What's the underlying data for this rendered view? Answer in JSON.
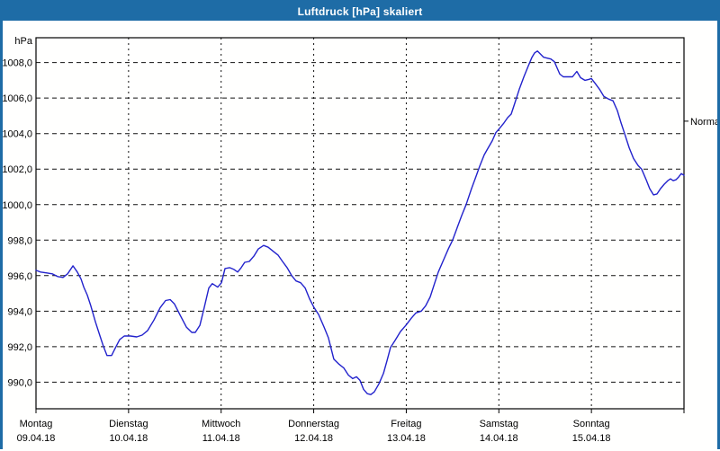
{
  "window": {
    "title": "Luftdruck [hPa] skaliert",
    "titlebar_color": "#1e6ca6",
    "border_color": "#1e6ca6",
    "background_color": "#fffffe"
  },
  "chart_data": {
    "type": "line",
    "title": "Luftdruck [hPa] skaliert",
    "ylabel": "hPa",
    "xlabel": "",
    "grid": "dashed horizontal and vertical (day boundaries)",
    "legend_position": "none",
    "line_color": "#2222cc",
    "ylim": [
      988.5,
      1009.4
    ],
    "x_range_hours": [
      0,
      168
    ],
    "y_ticks": [
      1008,
      1006,
      1004,
      1002,
      1000,
      998,
      996,
      994,
      992,
      990
    ],
    "y_tick_labels": [
      "1008,0",
      "1006,0",
      "1004,0",
      "1002,0",
      "1000,0",
      "998,0",
      "996,0",
      "994,0",
      "992,0",
      "990,0"
    ],
    "days": [
      {
        "weekday": "Montag",
        "date": "09.04.18"
      },
      {
        "weekday": "Dienstag",
        "date": "10.04.18"
      },
      {
        "weekday": "Mittwoch",
        "date": "11.04.18"
      },
      {
        "weekday": "Donnerstag",
        "date": "12.04.18"
      },
      {
        "weekday": "Freitag",
        "date": "13.04.18"
      },
      {
        "weekday": "Samstag",
        "date": "14.04.18"
      },
      {
        "weekday": "Sonntag",
        "date": "15.04.18"
      }
    ],
    "annotations": [
      {
        "label": "Normal",
        "value": 1004.7,
        "side": "right"
      }
    ],
    "series": [
      {
        "name": "Luftdruck",
        "color": "#2222cc",
        "points": [
          [
            0,
            996.3
          ],
          [
            1.2,
            996.2
          ],
          [
            2.8,
            996.15
          ],
          [
            4.2,
            996.1
          ],
          [
            5.6,
            995.95
          ],
          [
            7,
            995.9
          ],
          [
            8.2,
            996.1
          ],
          [
            9.6,
            996.55
          ],
          [
            10.7,
            996.2
          ],
          [
            11.7,
            995.8
          ],
          [
            12.4,
            995.35
          ],
          [
            13.3,
            994.9
          ],
          [
            14.2,
            994.3
          ],
          [
            15.4,
            993.4
          ],
          [
            16.6,
            992.6
          ],
          [
            17.5,
            992.0
          ],
          [
            18.4,
            991.5
          ],
          [
            19.6,
            991.5
          ],
          [
            20.5,
            991.9
          ],
          [
            21.7,
            992.4
          ],
          [
            22.9,
            992.6
          ],
          [
            24.5,
            992.6
          ],
          [
            26.1,
            992.55
          ],
          [
            27.5,
            992.65
          ],
          [
            28.9,
            992.9
          ],
          [
            30.6,
            993.5
          ],
          [
            32.2,
            994.2
          ],
          [
            33.6,
            994.6
          ],
          [
            34.8,
            994.65
          ],
          [
            35.9,
            994.4
          ],
          [
            37.3,
            993.8
          ],
          [
            39,
            993.1
          ],
          [
            40.4,
            992.8
          ],
          [
            41.3,
            992.8
          ],
          [
            42.5,
            993.2
          ],
          [
            43.6,
            994.2
          ],
          [
            44.8,
            995.3
          ],
          [
            45.7,
            995.55
          ],
          [
            47.1,
            995.35
          ],
          [
            48.1,
            995.6
          ],
          [
            49,
            996.4
          ],
          [
            50.2,
            996.45
          ],
          [
            51.3,
            996.35
          ],
          [
            52.3,
            996.2
          ],
          [
            53.2,
            996.45
          ],
          [
            54.1,
            996.75
          ],
          [
            55.3,
            996.8
          ],
          [
            56.5,
            997.1
          ],
          [
            57.6,
            997.5
          ],
          [
            59,
            997.7
          ],
          [
            60.2,
            997.6
          ],
          [
            61.6,
            997.35
          ],
          [
            62.8,
            997.15
          ],
          [
            63.9,
            996.8
          ],
          [
            65.1,
            996.45
          ],
          [
            66.3,
            996.0
          ],
          [
            67.4,
            995.7
          ],
          [
            68.6,
            995.6
          ],
          [
            69.8,
            995.3
          ],
          [
            70.9,
            994.7
          ],
          [
            72.1,
            994.2
          ],
          [
            73.3,
            993.8
          ],
          [
            74.7,
            993.1
          ],
          [
            75.8,
            992.5
          ],
          [
            77.2,
            991.3
          ],
          [
            78.6,
            991.0
          ],
          [
            79.8,
            990.8
          ],
          [
            81,
            990.4
          ],
          [
            82.1,
            990.2
          ],
          [
            83.1,
            990.3
          ],
          [
            84,
            990.1
          ],
          [
            84.9,
            989.6
          ],
          [
            85.9,
            989.35
          ],
          [
            86.8,
            989.3
          ],
          [
            87.7,
            989.45
          ],
          [
            88.9,
            989.9
          ],
          [
            90.1,
            990.5
          ],
          [
            91,
            991.2
          ],
          [
            91.9,
            991.95
          ],
          [
            93.1,
            992.35
          ],
          [
            94.5,
            992.85
          ],
          [
            95.9,
            993.2
          ],
          [
            97.3,
            993.6
          ],
          [
            98.5,
            993.9
          ],
          [
            99.9,
            994.0
          ],
          [
            101,
            994.3
          ],
          [
            102.2,
            994.8
          ],
          [
            103.4,
            995.6
          ],
          [
            104.3,
            996.2
          ],
          [
            105.5,
            996.8
          ],
          [
            106.9,
            997.5
          ],
          [
            108,
            998.0
          ],
          [
            109.2,
            998.7
          ],
          [
            110.4,
            999.4
          ],
          [
            111.5,
            1000.0
          ],
          [
            112.9,
            1000.9
          ],
          [
            114.1,
            1001.6
          ],
          [
            115,
            1002.15
          ],
          [
            116.2,
            1002.8
          ],
          [
            117.1,
            1003.15
          ],
          [
            118.3,
            1003.6
          ],
          [
            119.2,
            1004.05
          ],
          [
            120.2,
            1004.3
          ],
          [
            121.3,
            1004.6
          ],
          [
            122.3,
            1004.9
          ],
          [
            123.2,
            1005.1
          ],
          [
            124.1,
            1005.7
          ],
          [
            125.3,
            1006.5
          ],
          [
            126.5,
            1007.2
          ],
          [
            127.6,
            1007.8
          ],
          [
            128.6,
            1008.3
          ],
          [
            129.3,
            1008.55
          ],
          [
            130,
            1008.65
          ],
          [
            130.7,
            1008.5
          ],
          [
            131.6,
            1008.3
          ],
          [
            132.5,
            1008.25
          ],
          [
            133.5,
            1008.2
          ],
          [
            134.4,
            1008.05
          ],
          [
            135.1,
            1007.7
          ],
          [
            135.8,
            1007.35
          ],
          [
            136.7,
            1007.2
          ],
          [
            137.9,
            1007.2
          ],
          [
            139.1,
            1007.2
          ],
          [
            140.2,
            1007.5
          ],
          [
            141.2,
            1007.15
          ],
          [
            142.3,
            1007.0
          ],
          [
            143.3,
            1007.05
          ],
          [
            144,
            1007.1
          ],
          [
            144.9,
            1006.85
          ],
          [
            146.1,
            1006.5
          ],
          [
            147.2,
            1006.1
          ],
          [
            148.4,
            1005.95
          ],
          [
            149.6,
            1005.85
          ],
          [
            150.7,
            1005.3
          ],
          [
            151.7,
            1004.6
          ],
          [
            152.6,
            1004.0
          ],
          [
            153.8,
            1003.2
          ],
          [
            154.9,
            1002.6
          ],
          [
            156.1,
            1002.2
          ],
          [
            157,
            1002.0
          ],
          [
            158.2,
            1001.4
          ],
          [
            159.1,
            1000.9
          ],
          [
            160.1,
            1000.55
          ],
          [
            161,
            1000.6
          ],
          [
            161.9,
            1000.9
          ],
          [
            162.9,
            1001.15
          ],
          [
            163.8,
            1001.35
          ],
          [
            164.5,
            1001.45
          ],
          [
            165.2,
            1001.35
          ],
          [
            165.9,
            1001.4
          ],
          [
            166.6,
            1001.55
          ],
          [
            167.3,
            1001.75
          ],
          [
            168,
            1001.65
          ]
        ]
      }
    ]
  }
}
